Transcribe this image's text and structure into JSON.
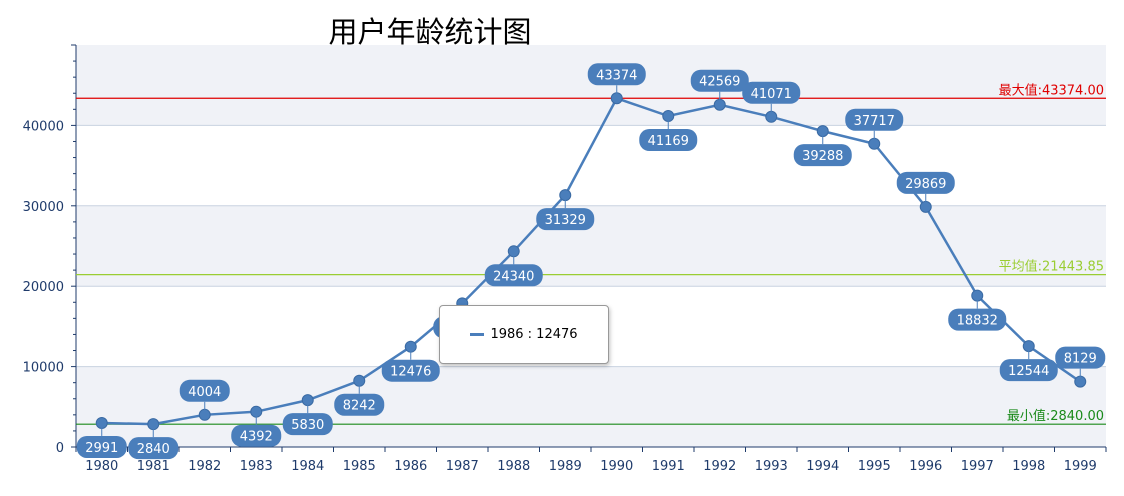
{
  "chart_data": {
    "type": "line",
    "title": "用户年龄统计图",
    "categories": [
      "1980",
      "1981",
      "1982",
      "1983",
      "1984",
      "1985",
      "1986",
      "1987",
      "1988",
      "1989",
      "1990",
      "1991",
      "1992",
      "1993",
      "1994",
      "1995",
      "1996",
      "1997",
      "1998",
      "1999"
    ],
    "series": [
      {
        "values": [
          2991,
          2840,
          4004,
          4392,
          5830,
          8242,
          12476,
          17871,
          24340,
          31329,
          43374,
          41169,
          42569,
          41071,
          39288,
          37717,
          29869,
          18832,
          12544,
          8129
        ]
      }
    ],
    "ylim": [
      0,
      50000
    ],
    "yticks": [
      0,
      10000,
      20000,
      30000,
      40000
    ],
    "grid": true,
    "reference_lines": [
      {
        "label": "最大值:43374.00",
        "value": 43374,
        "color": "#e00000"
      },
      {
        "label": "平均值:21443.85",
        "value": 21443.85,
        "color": "#9acd32"
      },
      {
        "label": "最小值:2840.00",
        "value": 2840,
        "color": "#1a8a1a"
      }
    ],
    "series_color": "#4a7ebb",
    "label_color": "#4a7ebb",
    "tooltip": {
      "text": "1986 : 12476"
    }
  }
}
